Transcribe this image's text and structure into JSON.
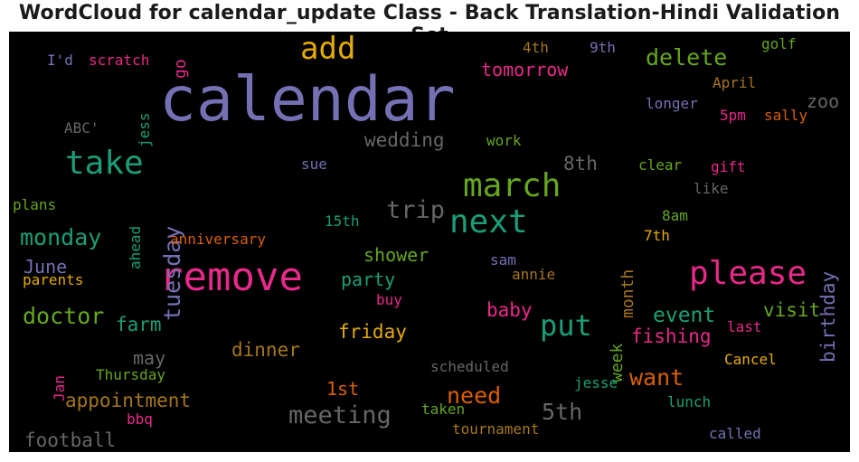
{
  "title": "WordCloud for calendar_update Class - Back Translation-Hindi Validation Set",
  "chart_data": {
    "type": "wordcloud",
    "title": "WordCloud for calendar_update Class - Back Translation-Hindi Validation Set",
    "colormap": "Dark2",
    "background": "#000000",
    "words": [
      {
        "text": "calendar",
        "color": "#7570b3"
      },
      {
        "text": "remove",
        "color": "#e7298a"
      },
      {
        "text": "add",
        "color": "#e6ab02"
      },
      {
        "text": "take",
        "color": "#1b9e77"
      },
      {
        "text": "march",
        "color": "#66a61e"
      },
      {
        "text": "next",
        "color": "#1b9e77"
      },
      {
        "text": "please",
        "color": "#e7298a"
      },
      {
        "text": "put",
        "color": "#1b9e77"
      },
      {
        "text": "delete",
        "color": "#66a61e"
      },
      {
        "text": "tuesday",
        "color": "#7570b3"
      },
      {
        "text": "meeting",
        "color": "#666666"
      },
      {
        "text": "trip",
        "color": "#666666"
      },
      {
        "text": "doctor",
        "color": "#66a61e"
      },
      {
        "text": "monday",
        "color": "#1b9e77"
      },
      {
        "text": "5th",
        "color": "#666666"
      },
      {
        "text": "need",
        "color": "#d95f02"
      },
      {
        "text": "want",
        "color": "#d95f02"
      },
      {
        "text": "event",
        "color": "#1b9e77"
      },
      {
        "text": "wedding",
        "color": "#666666"
      },
      {
        "text": "tomorrow",
        "color": "#e7298a"
      },
      {
        "text": "8th",
        "color": "#666666"
      },
      {
        "text": "shower",
        "color": "#66a61e"
      },
      {
        "text": "party",
        "color": "#1b9e77"
      },
      {
        "text": "birthday",
        "color": "#7570b3"
      },
      {
        "text": "visit",
        "color": "#66a61e"
      },
      {
        "text": "fishing",
        "color": "#e7298a"
      },
      {
        "text": "baby",
        "color": "#e7298a"
      },
      {
        "text": "farm",
        "color": "#1b9e77"
      },
      {
        "text": "friday",
        "color": "#e6ab02"
      },
      {
        "text": "dinner",
        "color": "#a6761d"
      },
      {
        "text": "appointment",
        "color": "#a6761d"
      },
      {
        "text": "football",
        "color": "#666666"
      },
      {
        "text": "may",
        "color": "#666666"
      },
      {
        "text": "1st",
        "color": "#d95f02"
      },
      {
        "text": "month",
        "color": "#a6761d"
      },
      {
        "text": "week",
        "color": "#66a61e"
      },
      {
        "text": "zoo",
        "color": "#666666"
      },
      {
        "text": "June",
        "color": "#7570b3"
      },
      {
        "text": "go",
        "color": "#e7298a"
      },
      {
        "text": "anniversary",
        "color": "#d95f02"
      },
      {
        "text": "parents",
        "color": "#e6ab02"
      },
      {
        "text": "Thursday",
        "color": "#66a61e"
      },
      {
        "text": "scheduled",
        "color": "#666666"
      },
      {
        "text": "tournament",
        "color": "#a6761d"
      },
      {
        "text": "taken",
        "color": "#66a61e"
      },
      {
        "text": "jesse",
        "color": "#1b9e77"
      },
      {
        "text": "lunch",
        "color": "#1b9e77"
      },
      {
        "text": "Cancel",
        "color": "#e6ab02"
      },
      {
        "text": "called",
        "color": "#7570b3"
      },
      {
        "text": "last",
        "color": "#e7298a"
      },
      {
        "text": "7th",
        "color": "#e6ab02"
      },
      {
        "text": "8am",
        "color": "#66a61e"
      },
      {
        "text": "like",
        "color": "#666666"
      },
      {
        "text": "gift",
        "color": "#e7298a"
      },
      {
        "text": "clear",
        "color": "#66a61e"
      },
      {
        "text": "sally",
        "color": "#d95f02"
      },
      {
        "text": "5pm",
        "color": "#e7298a"
      },
      {
        "text": "longer",
        "color": "#7570b3"
      },
      {
        "text": "April",
        "color": "#a6761d"
      },
      {
        "text": "golf",
        "color": "#66a61e"
      },
      {
        "text": "9th",
        "color": "#7570b3"
      },
      {
        "text": "4th",
        "color": "#a6761d"
      },
      {
        "text": "work",
        "color": "#66a61e"
      },
      {
        "text": "sue",
        "color": "#7570b3"
      },
      {
        "text": "15th",
        "color": "#1b9e77"
      },
      {
        "text": "sam",
        "color": "#7570b3"
      },
      {
        "text": "annie",
        "color": "#a6761d"
      },
      {
        "text": "buy",
        "color": "#e7298a"
      },
      {
        "text": "bbq",
        "color": "#e7298a"
      },
      {
        "text": "Jan",
        "color": "#e7298a"
      },
      {
        "text": "plans",
        "color": "#66a61e"
      },
      {
        "text": "ahead",
        "color": "#1b9e77"
      },
      {
        "text": "ABC'",
        "color": "#666666"
      },
      {
        "text": "jess",
        "color": "#1b9e77"
      },
      {
        "text": "I'd",
        "color": "#7570b3"
      },
      {
        "text": "scratch",
        "color": "#e7298a"
      }
    ]
  }
}
